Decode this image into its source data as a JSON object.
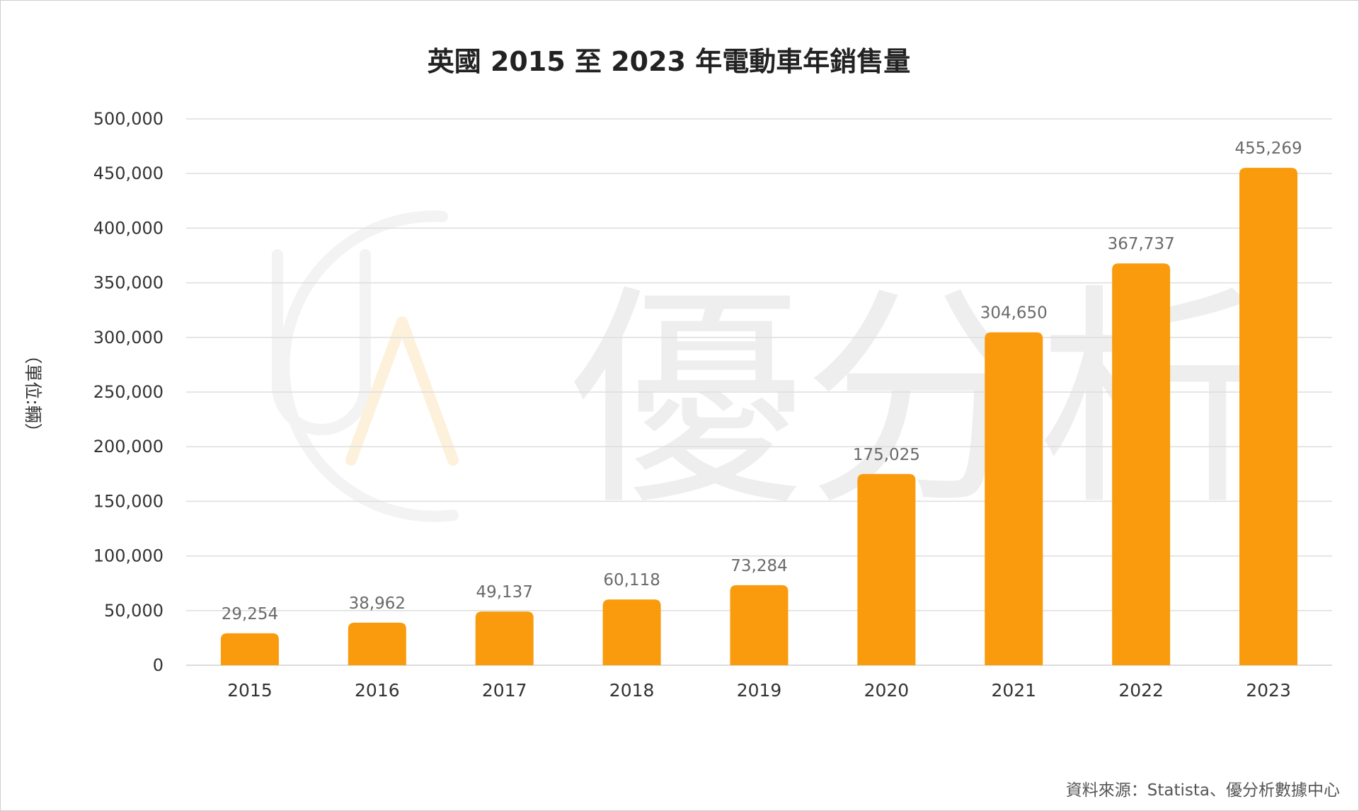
{
  "chart_data": {
    "type": "bar",
    "title": "英國 2015 至 2023 年電動車年銷售量",
    "ylabel": "（單位:輛）",
    "xlabel": "",
    "categories": [
      "2015",
      "2016",
      "2017",
      "2018",
      "2019",
      "2020",
      "2021",
      "2022",
      "2023"
    ],
    "values": [
      29254,
      38962,
      49137,
      60118,
      73284,
      175025,
      304650,
      367737,
      455269
    ],
    "data_labels": [
      "29,254",
      "38,962",
      "49,137",
      "60,118",
      "73,284",
      "175,025",
      "304,650",
      "367,737",
      "455,269"
    ],
    "ylim": [
      0,
      500000
    ],
    "yticks": [
      0,
      50000,
      100000,
      150000,
      200000,
      250000,
      300000,
      350000,
      400000,
      450000,
      500000
    ],
    "ytick_labels": [
      "0",
      "50,000",
      "100,000",
      "150,000",
      "200,000",
      "250,000",
      "300,000",
      "350,000",
      "400,000",
      "450,000",
      "500,000"
    ],
    "grid": true,
    "legend": "none",
    "bar_color": "#F99B0C"
  },
  "source": "資料來源：Statista、優分析數據中心",
  "watermark": {
    "logo_letters": "UA",
    "text": "優分析"
  }
}
